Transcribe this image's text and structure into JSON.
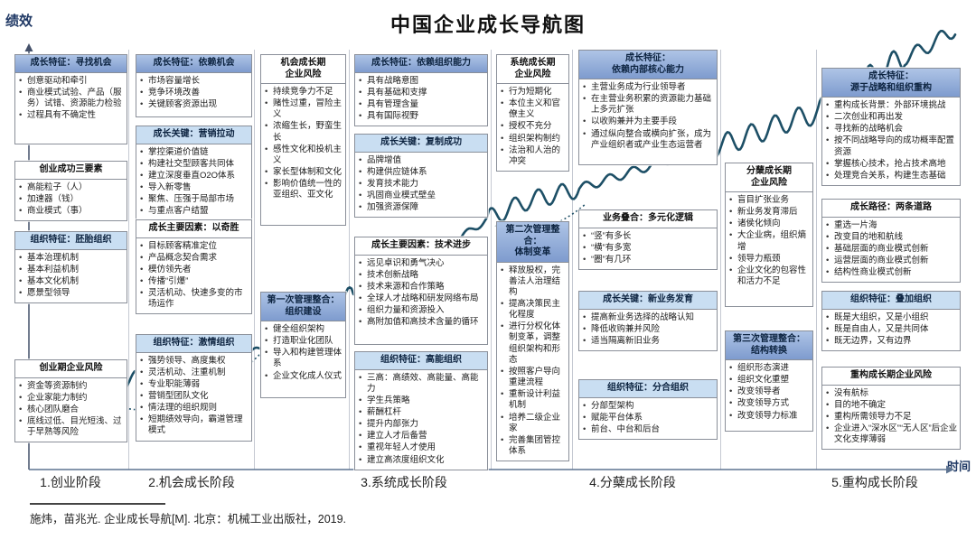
{
  "title": "中国企业成长导航图",
  "y_axis_label": "绩效",
  "x_axis_label": "时间",
  "stages": [
    "1.创业阶段",
    "2.机会成长阶段",
    "3.系统成长阶段",
    "4.分蘖成长阶段",
    "5.重构成长阶段"
  ],
  "citation": "施炜，苗兆光. 企业成长导航[M]. 北京：机械工业出版社，2019.",
  "colors": {
    "header_dark": "#7e9bce",
    "header_light": "#c9def2",
    "curve": "#1d4f66",
    "axis_text": "#1f3864"
  },
  "columns": [
    {
      "stage": 1,
      "boxes": [
        {
          "style": "dark",
          "title": "成长特征：寻找机会",
          "items": [
            "创意驱动和牵引",
            "商业模式试验、产品（服务）试错、资源能力检验",
            "过程具有不确定性"
          ]
        },
        {
          "style": "plain",
          "title": "创业成功三要素",
          "items": [
            "高能粒子（人）",
            "加速器（钱）",
            "商业模式（事）"
          ]
        },
        {
          "style": "light",
          "title": "组织特征：胚胎组织",
          "items": [
            "基本治理机制",
            "基本利益机制",
            "基本文化机制",
            "愿景型领导"
          ]
        },
        {
          "style": "plain",
          "title": "创业期企业风险",
          "items": [
            "资金等资源制约",
            "企业家能力制约",
            "核心团队磨合",
            "底线过低、目光短浅、过于早熟等风险"
          ]
        }
      ]
    },
    {
      "stage": 2,
      "boxes": [
        {
          "style": "dark",
          "title": "成长特征：依赖机会",
          "items": [
            "市场容量增长",
            "竞争环境改善",
            "关键顾客资源出现"
          ]
        },
        {
          "style": "light",
          "title": "成长关键：营销拉动",
          "items": [
            "掌控渠道价值链",
            "构建社交型顾客共同体",
            "建立深度垂直O2O体系",
            "导入新零售",
            "聚焦、压强于局部市场",
            "与重点客户结盟"
          ]
        },
        {
          "style": "plain",
          "title": "成长主要因素：以奇胜",
          "items": [
            "目标顾客精准定位",
            "产品概念契合需求",
            "模仿领先者",
            "传播“引爆”",
            "灵活机动、快速多变的市场运作"
          ]
        },
        {
          "style": "light",
          "title": "组织特征：激情组织",
          "items": [
            "强势领导、高度集权",
            "灵活机动、注重机制",
            "专业职能薄弱",
            "营销型团队文化",
            "情法理的组织规则",
            "短期绩效导向，霸道管理模式"
          ]
        }
      ]
    },
    {
      "stage": 2,
      "boxes": [
        {
          "style": "plain",
          "title": "机会成长期\n企业风险",
          "items": [
            "持续竞争力不足",
            "赌性过重，冒险主义",
            "浓缩生长，野蛮生长",
            "感性文化和投机主义",
            "家长型体制和文化",
            "影响价值统一性的亚组织、亚文化"
          ]
        },
        {
          "style": "dark",
          "title": "第一次管理整合：\n组织建设",
          "items": [
            "健全组织架构",
            "打造职业化团队",
            "导入和构建管理体系",
            "企业文化成人仪式"
          ]
        }
      ]
    },
    {
      "stage": 3,
      "boxes": [
        {
          "style": "dark",
          "title": "成长特征：依赖组织能力",
          "items": [
            "具有战略意图",
            "具有基础和支撑",
            "具有管理含量",
            "具有国际视野"
          ]
        },
        {
          "style": "light",
          "title": "成长关键：复制成功",
          "items": [
            "品牌增值",
            "构建供应链体系",
            "发育技术能力",
            "巩固商业模式壁垒",
            "加强资源保障"
          ]
        },
        {
          "style": "plain",
          "title": "成长主要因素：技术进步",
          "items": [
            "远见卓识和勇气决心",
            "技术创新战略",
            "技术来源和合作策略",
            "全球人才战略和研发网络布局",
            "组织力量和资源投入",
            "高附加值和高技术含量的循环"
          ]
        },
        {
          "style": "light",
          "title": "组织特征：高能组织",
          "items": [
            "三高：高绩效、高能量、高能力",
            "学生兵策略",
            "薪酬杠杆",
            "提升内部张力",
            "建立人才后备营",
            "重视年轻人才使用",
            "建立高浓度组织文化"
          ]
        }
      ]
    },
    {
      "stage": 3,
      "boxes": [
        {
          "style": "plain",
          "title": "系统成长期\n企业风险",
          "items": [
            "行为短期化",
            "本位主义和官僚主义",
            "授权不充分",
            "组织架构制约",
            "法治和人治的冲突"
          ]
        },
        {
          "style": "dark",
          "title": "第二次管理整合：\n体制变革",
          "items": [
            "释放股权，完善法人治理结构",
            "提高决策民主化程度",
            "进行分权化体制变革，调整组织架构和形态",
            "按照客户导向重建流程",
            "重新设计利益机制",
            "培养二级企业家",
            "完善集团管控体系"
          ]
        }
      ]
    },
    {
      "stage": 4,
      "boxes": [
        {
          "style": "dark",
          "title": "成长特征：\n依赖内部核心能力",
          "items": [
            "主营业务成为行业领导者",
            "在主营业务积累的资源能力基础上多元扩张",
            "以收购兼并为主要手段",
            "通过纵向整合或横向扩张，成为产业组织者或产业生态运营者"
          ]
        },
        {
          "style": "plain",
          "title": "业务叠合：多元化逻辑",
          "items": [
            "“竖”有多长",
            "“横”有多宽",
            "“圈”有几环"
          ]
        },
        {
          "style": "light",
          "title": "成长关键：新业务发育",
          "items": [
            "提高新业务选择的战略认知",
            "降低收购兼并风险",
            "适当隔离新旧业务"
          ]
        },
        {
          "style": "light",
          "title": "组织特征：分合组织",
          "items": [
            "分部型架构",
            "赋能平台体系",
            "前台、中台和后台"
          ]
        }
      ]
    },
    {
      "stage": 4,
      "boxes": [
        {
          "style": "plain",
          "title": "分蘖成长期\n企业风险",
          "items": [
            "盲目扩张业务",
            "新业务发育滞后",
            "诸侯化倾向",
            "大企业病，组织熵增",
            "领导力瓶颈",
            "企业文化的包容性和活力不足"
          ]
        },
        {
          "style": "dark",
          "title": "第三次管理整合：\n结构转换",
          "items": [
            "组织形态演进",
            "组织文化重塑",
            "改变领导者",
            "改变领导方式",
            "改变领导力标准"
          ]
        }
      ]
    },
    {
      "stage": 5,
      "boxes": [
        {
          "style": "dark",
          "title": "成长特征：\n源于战略和组织重构",
          "items": [
            "重构成长背景：外部环境挑战",
            "二次创业和再出发",
            "寻找新的战略机会",
            "按不同战略导向的成功概率配置资源",
            "掌握核心技术，抢占技术高地",
            "处理竞合关系，构建生态基础"
          ]
        },
        {
          "style": "plain",
          "title": "成长路径：两条道路",
          "items": [
            "重选一片海",
            "改变目的地和航线",
            "基础层面的商业模式创新",
            "运营层面的商业模式创新",
            "结构性商业模式创新"
          ]
        },
        {
          "style": "light",
          "title": "组织特征：叠加组织",
          "items": [
            "既是大组织，又是小组织",
            "既是自由人，又是共同体",
            "既无边界，又有边界"
          ]
        },
        {
          "style": "plain",
          "title": "重构成长期企业风险",
          "items": [
            "没有航标",
            "目的地不确定",
            "重构所需领导力不足",
            "企业进入“深水区”“无人区”后企业文化支撑薄弱"
          ]
        }
      ]
    }
  ]
}
